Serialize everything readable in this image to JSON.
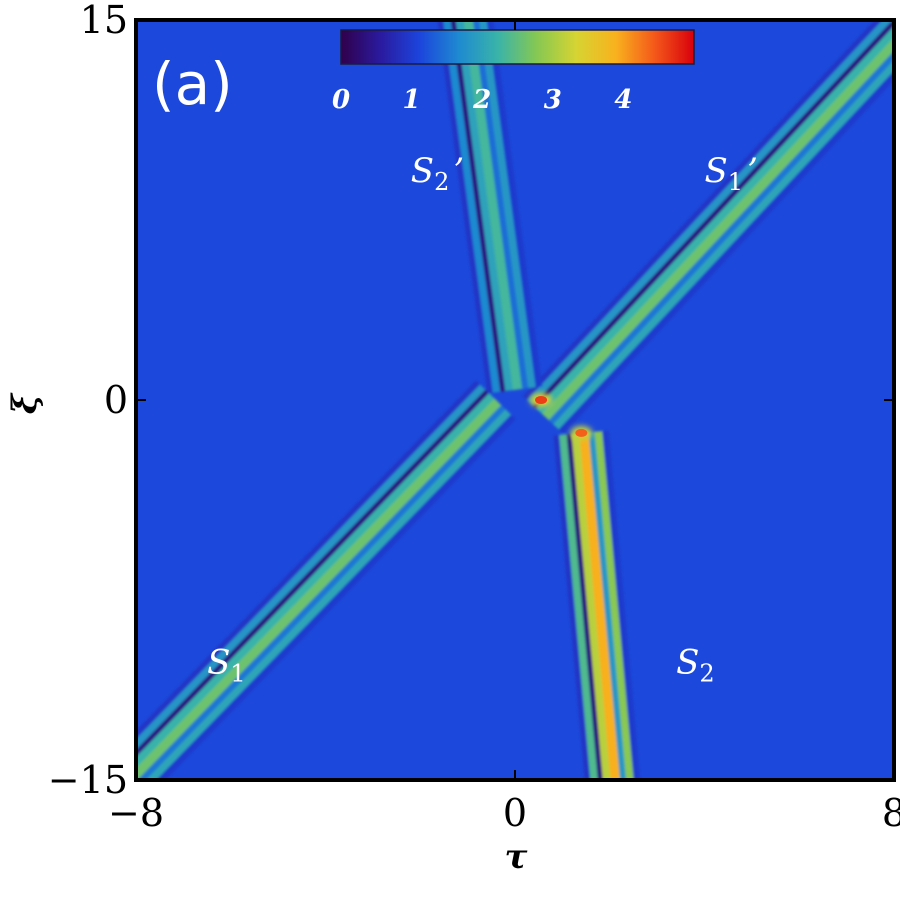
{
  "chart_data": {
    "type": "heatmap",
    "panel_label": "(a)",
    "xlabel": "τ",
    "ylabel": "ξ",
    "xlim": [
      -8,
      8
    ],
    "ylim": [
      -15,
      15
    ],
    "x_ticks": [
      {
        "value": -8,
        "label": "−8"
      },
      {
        "value": 0,
        "label": "0"
      },
      {
        "value": 8,
        "label": "8"
      }
    ],
    "y_ticks": [
      {
        "value": 15,
        "label": "15"
      },
      {
        "value": 0,
        "label": "0"
      },
      {
        "value": -15,
        "label": "−15"
      }
    ],
    "colorbar": {
      "range": [
        0,
        5
      ],
      "ticks": [
        {
          "value": 0,
          "label": "0"
        },
        {
          "value": 1,
          "label": "1"
        },
        {
          "value": 2,
          "label": "2"
        },
        {
          "value": 3,
          "label": "3"
        },
        {
          "value": 4,
          "label": "4"
        }
      ],
      "colormap": [
        "#30004a",
        "#2a1a9e",
        "#1c44dc",
        "#1e8ad0",
        "#39b4a8",
        "#86c852",
        "#d6d432",
        "#f8b21e",
        "#f4581a",
        "#d8000c"
      ]
    },
    "background_value": 1.15,
    "solitons": [
      {
        "label": "S",
        "sub": "1",
        "prime": false,
        "label_at": [
          -6.5,
          -10.8
        ],
        "path": [
          [
            -8.6,
            -15.8
          ],
          [
            -0.4,
            0
          ]
        ],
        "peak": 2.6
      },
      {
        "label": "S",
        "sub": "2",
        "prime": false,
        "label_at": [
          3.4,
          -10.8
        ],
        "path": [
          [
            2.1,
            -15.8
          ],
          [
            1.4,
            -1.3
          ]
        ],
        "peak": 3.9
      },
      {
        "label": "S",
        "sub": "1",
        "prime": true,
        "label_at": [
          4.0,
          8.6
        ],
        "path": [
          [
            0.6,
            -0.6
          ],
          [
            8.8,
            15.8
          ]
        ],
        "peak": 2.6
      },
      {
        "label": "S",
        "sub": "2",
        "prime": true,
        "label_at": [
          -2.2,
          8.6
        ],
        "path": [
          [
            0.0,
            0.4
          ],
          [
            -1.1,
            15.8
          ]
        ],
        "peak": 2.3
      }
    ],
    "hotspots": [
      {
        "x": 0.55,
        "y": 0.0,
        "value": 4.6
      },
      {
        "x": 1.4,
        "y": -1.3,
        "value": 4.4
      }
    ]
  }
}
